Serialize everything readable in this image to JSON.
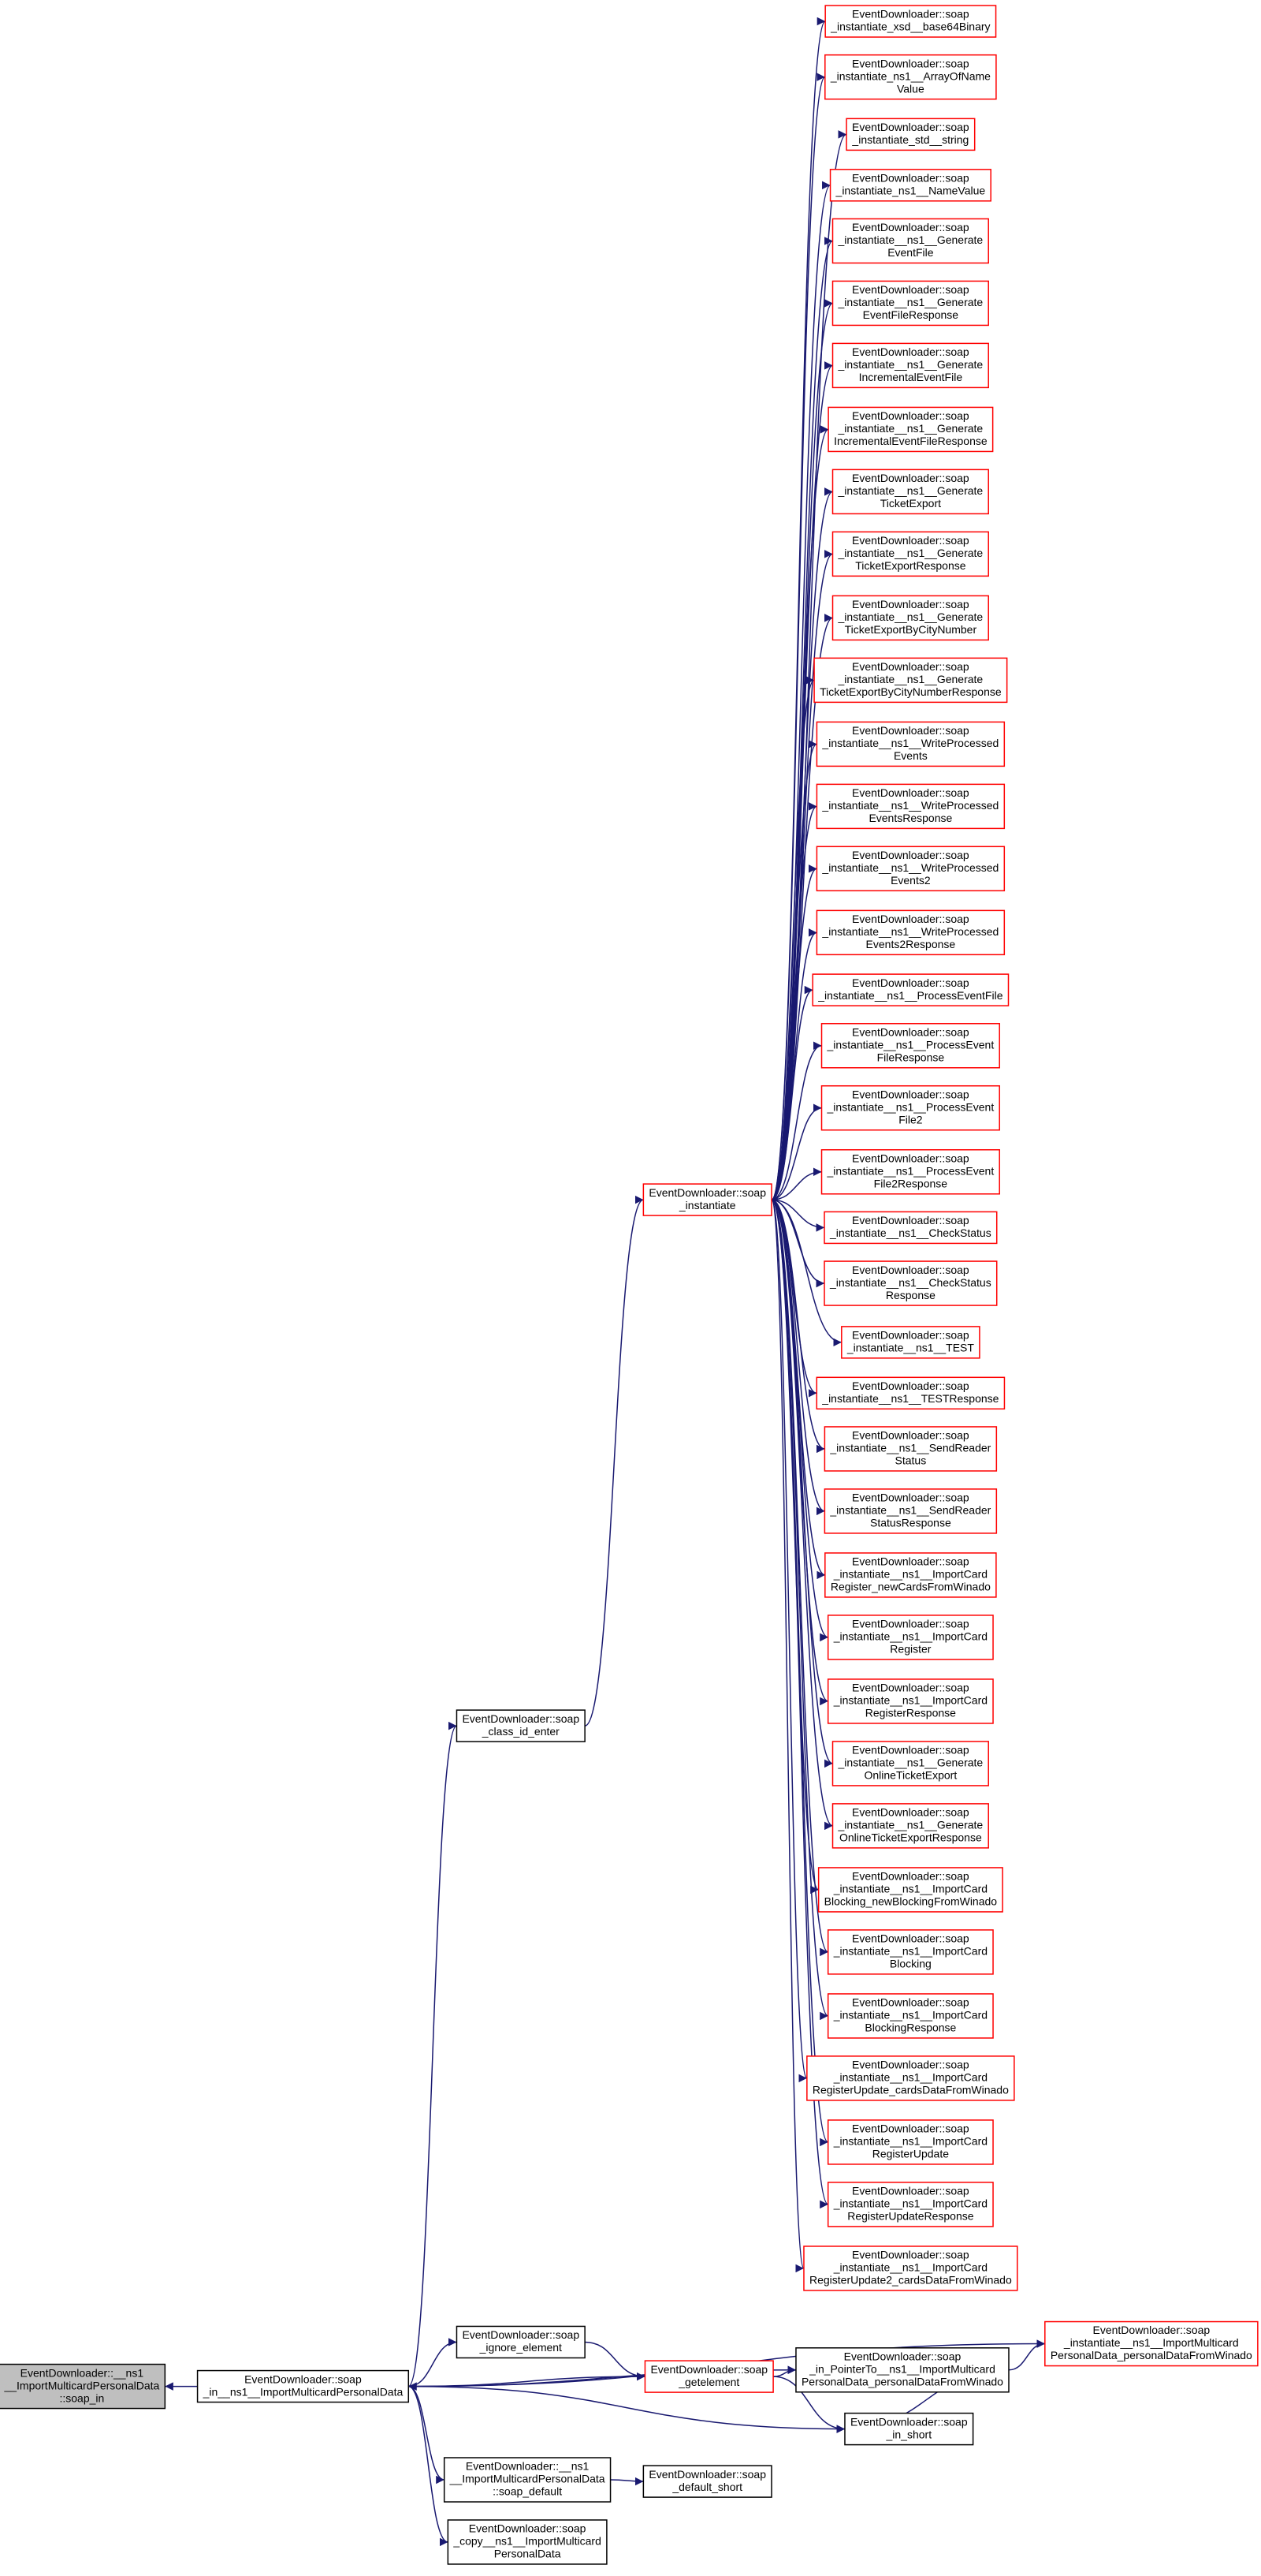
{
  "nodes": [
    {
      "lines": [
        "EventDownloader::soap",
        "_instantiate_xsd__base64Binary"
      ]
    },
    {
      "lines": [
        "EventDownloader::soap",
        "_instantiate_ns1__ArrayOfName",
        "Value"
      ]
    },
    {
      "lines": [
        "EventDownloader::soap",
        "_instantiate_std__string"
      ]
    },
    {
      "lines": [
        "EventDownloader::soap",
        "_instantiate_ns1__NameValue"
      ]
    },
    {
      "lines": [
        "EventDownloader::soap",
        "_instantiate__ns1__Generate",
        "EventFile"
      ]
    },
    {
      "lines": [
        "EventDownloader::soap",
        "_instantiate__ns1__Generate",
        "EventFileResponse"
      ]
    },
    {
      "lines": [
        "EventDownloader::soap",
        "_instantiate__ns1__Generate",
        "IncrementalEventFile"
      ]
    },
    {
      "lines": [
        "EventDownloader::soap",
        "_instantiate__ns1__Generate",
        "IncrementalEventFileResponse"
      ]
    },
    {
      "lines": [
        "EventDownloader::soap",
        "_instantiate__ns1__Generate",
        "TicketExport"
      ]
    },
    {
      "lines": [
        "EventDownloader::soap",
        "_instantiate__ns1__Generate",
        "TicketExportResponse"
      ]
    },
    {
      "lines": [
        "EventDownloader::soap",
        "_instantiate__ns1__Generate",
        "TicketExportByCityNumber"
      ]
    },
    {
      "lines": [
        "EventDownloader::soap",
        "_instantiate__ns1__Generate",
        "TicketExportByCityNumberResponse"
      ]
    },
    {
      "lines": [
        "EventDownloader::soap",
        "_instantiate__ns1__WriteProcessed",
        "Events"
      ]
    },
    {
      "lines": [
        "EventDownloader::soap",
        "_instantiate__ns1__WriteProcessed",
        "EventsResponse"
      ]
    },
    {
      "lines": [
        "EventDownloader::soap",
        "_instantiate__ns1__WriteProcessed",
        "Events2"
      ]
    },
    {
      "lines": [
        "EventDownloader::soap",
        "_instantiate__ns1__WriteProcessed",
        "Events2Response"
      ]
    },
    {
      "lines": [
        "EventDownloader::soap",
        "_instantiate__ns1__ProcessEventFile"
      ]
    },
    {
      "lines": [
        "EventDownloader::soap",
        "_instantiate__ns1__ProcessEvent",
        "FileResponse"
      ]
    },
    {
      "lines": [
        "EventDownloader::soap",
        "_instantiate__ns1__ProcessEvent",
        "File2"
      ]
    },
    {
      "lines": [
        "EventDownloader::soap",
        "_instantiate__ns1__ProcessEvent",
        "File2Response"
      ]
    },
    {
      "lines": [
        "EventDownloader::soap",
        "_instantiate__ns1__CheckStatus"
      ]
    },
    {
      "lines": [
        "EventDownloader::soap",
        "_instantiate__ns1__CheckStatus",
        "Response"
      ]
    },
    {
      "lines": [
        "EventDownloader::soap",
        "_instantiate__ns1__TEST"
      ]
    },
    {
      "lines": [
        "EventDownloader::soap",
        "_instantiate__ns1__TESTResponse"
      ]
    },
    {
      "lines": [
        "EventDownloader::soap",
        "_instantiate__ns1__SendReader",
        "Status"
      ]
    },
    {
      "lines": [
        "EventDownloader::soap",
        "_instantiate__ns1__SendReader",
        "StatusResponse"
      ]
    },
    {
      "lines": [
        "EventDownloader::soap",
        "_instantiate__ns1__ImportCard",
        "Register_newCardsFromWinado"
      ]
    },
    {
      "lines": [
        "EventDownloader::soap",
        "_instantiate__ns1__ImportCard",
        "Register"
      ]
    },
    {
      "lines": [
        "EventDownloader::soap",
        "_instantiate__ns1__ImportCard",
        "RegisterResponse"
      ]
    },
    {
      "lines": [
        "EventDownloader::soap",
        "_instantiate__ns1__Generate",
        "OnlineTicketExport"
      ]
    },
    {
      "lines": [
        "EventDownloader::soap",
        "_instantiate__ns1__Generate",
        "OnlineTicketExportResponse"
      ]
    },
    {
      "lines": [
        "EventDownloader::soap",
        "_instantiate__ns1__ImportCard",
        "Blocking_newBlockingFromWinado"
      ]
    },
    {
      "lines": [
        "EventDownloader::soap",
        "_instantiate__ns1__ImportCard",
        "Blocking"
      ]
    },
    {
      "lines": [
        "EventDownloader::soap",
        "_instantiate__ns1__ImportCard",
        "BlockingResponse"
      ]
    },
    {
      "lines": [
        "EventDownloader::soap",
        "_instantiate__ns1__ImportCard",
        "RegisterUpdate_cardsDataFromWinado"
      ]
    },
    {
      "lines": [
        "EventDownloader::soap",
        "_instantiate__ns1__ImportCard",
        "RegisterUpdate"
      ]
    },
    {
      "lines": [
        "EventDownloader::soap",
        "_instantiate__ns1__ImportCard",
        "RegisterUpdateResponse"
      ]
    },
    {
      "lines": [
        "EventDownloader::soap",
        "_instantiate__ns1__ImportCard",
        "RegisterUpdate2_cardsDataFromWinado"
      ]
    },
    {
      "lines": [
        "EventDownloader::soap",
        "_instantiate"
      ]
    },
    {
      "lines": [
        "EventDownloader::soap",
        "_class_id_enter"
      ]
    },
    {
      "lines": [
        "EventDownloader::soap",
        "_ignore_element"
      ]
    },
    {
      "lines": [
        "EventDownloader::soap",
        "_getelement"
      ]
    },
    {
      "lines": [
        "EventDownloader::soap",
        "_in_PointerTo__ns1__ImportMulticard",
        "PersonalData_personalDataFromWinado"
      ]
    },
    {
      "lines": [
        "EventDownloader::soap",
        "_instantiate__ns1__ImportMulticard",
        "PersonalData_personalDataFromWinado"
      ]
    },
    {
      "lines": [
        "EventDownloader::soap",
        "_in_short"
      ]
    },
    {
      "lines": [
        "EventDownloader::soap",
        "_in__ns1__ImportMulticardPersonalData"
      ]
    },
    {
      "lines": [
        "EventDownloader::__ns1",
        "__ImportMulticardPersonalData",
        "::soap_in"
      ]
    },
    {
      "lines": [
        "EventDownloader::__ns1",
        "__ImportMulticardPersonalData",
        "::soap_default"
      ]
    },
    {
      "lines": [
        "EventDownloader::soap",
        "_default_short"
      ]
    },
    {
      "lines": [
        "EventDownloader::soap",
        "_copy__ns1__ImportMulticard",
        "PersonalData"
      ]
    }
  ]
}
